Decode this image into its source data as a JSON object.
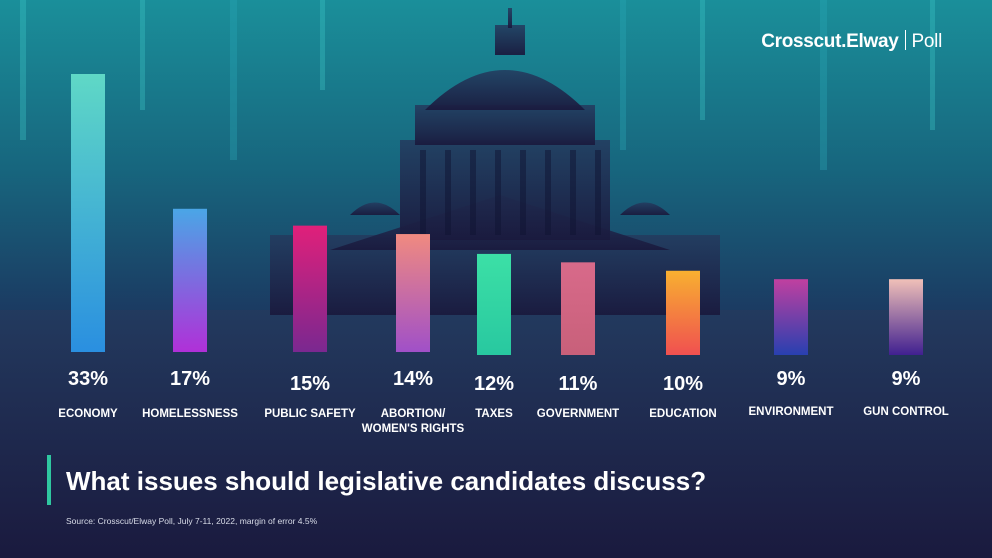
{
  "brand": {
    "name": "Crosscut",
    "dot": ".",
    "partner": "Elway",
    "suffix": "Poll"
  },
  "title": "What issues should legislative candidates discuss?",
  "source": "Source: Crosscut/Elway Poll, July 7-11, 2022, margin of error 4.5%",
  "chart_data": {
    "type": "bar",
    "categories": [
      "ECONOMY",
      "HOMELESSNESS",
      "PUBLIC SAFETY",
      "ABORTION/\nWOMEN'S RIGHTS",
      "TAXES",
      "GOVERNMENT",
      "EDUCATION",
      "ENVIRONMENT",
      "GUN CONTROL"
    ],
    "value_labels": [
      "33%",
      "17%",
      "15%",
      "14%",
      "12%",
      "11%",
      "10%",
      "9%",
      "9%"
    ],
    "series": [
      {
        "values": [
          33,
          17,
          15,
          14,
          12,
          11,
          10,
          9,
          9
        ]
      }
    ],
    "colors": [
      [
        "#5fd8c6",
        "#2a8fe0"
      ],
      [
        "#4aa6e6",
        "#b030d8"
      ],
      [
        "#e0207a",
        "#7a2890"
      ],
      [
        "#f08a80",
        "#a050c8"
      ],
      [
        "#3ce0a6",
        "#28c8a0"
      ],
      [
        "#d86a8a",
        "#c8607a"
      ],
      [
        "#f8b030",
        "#f05050"
      ],
      [
        "#c040a0",
        "#2840b0"
      ],
      [
        "#f0c0b8",
        "#402090"
      ]
    ],
    "ylim": [
      0,
      33
    ]
  }
}
